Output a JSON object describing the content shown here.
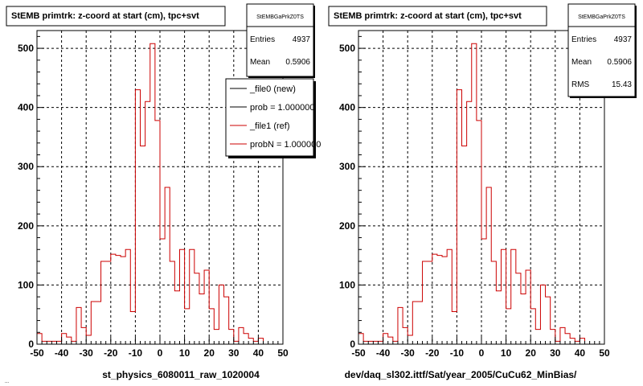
{
  "chart_data": [
    {
      "type": "histogram",
      "title": "StEMB primtrk: z-coord at start (cm), tpc+svt",
      "xlabel": "st_physics_6080011_raw_1020004",
      "xlim": [
        -50,
        50
      ],
      "ylim": [
        0,
        530
      ],
      "xticks": [
        -50,
        -40,
        -30,
        -20,
        -10,
        0,
        10,
        20,
        30,
        40,
        50
      ],
      "yticks": [
        0,
        100,
        200,
        300,
        400,
        500
      ],
      "grid": true,
      "bin_width": 2,
      "x_start": -50,
      "values": [
        18,
        5,
        5,
        5,
        5,
        18,
        12,
        5,
        62,
        28,
        15,
        72,
        72,
        140,
        140,
        152,
        150,
        148,
        160,
        55,
        430,
        335,
        410,
        508,
        378,
        178,
        265,
        140,
        90,
        160,
        60,
        160,
        120,
        85,
        125,
        60,
        25,
        100,
        80,
        25,
        5,
        28,
        18,
        10,
        5,
        10
      ],
      "series": [
        {
          "name": "_file0 (new)",
          "color": "#000000"
        },
        {
          "name": "_file1 (ref)",
          "color": "#cc0000"
        }
      ],
      "stats": {
        "label": "StEMBGaPrkZ0TS",
        "entries_label": "Entries",
        "entries": "4937",
        "mean_label": "Mean",
        "mean": "0.5906"
      },
      "legend": {
        "placement": "top-right",
        "entries": [
          {
            "text": "_file0 (new)",
            "color": "#000000"
          },
          {
            "text": "prob = 1.000000",
            "color": "#000000"
          },
          {
            "text": "_file1 (ref)",
            "color": "#cc0000"
          },
          {
            "text": "probN = 1.000000",
            "color": "#cc0000"
          }
        ]
      }
    },
    {
      "type": "histogram",
      "title": "StEMB primtrk: z-coord at start (cm), tpc+svt",
      "xlabel": "dev/daq_sl302.ittf/Sat/year_2005/CuCu62_MinBias/",
      "xlim": [
        -50,
        50
      ],
      "ylim": [
        0,
        530
      ],
      "xticks": [
        -50,
        -40,
        -30,
        -20,
        -10,
        0,
        10,
        20,
        30,
        40,
        50
      ],
      "yticks": [
        0,
        100,
        200,
        300,
        400,
        500
      ],
      "grid": true,
      "bin_width": 2,
      "x_start": -50,
      "values": [
        18,
        5,
        5,
        5,
        5,
        18,
        12,
        5,
        62,
        28,
        15,
        72,
        72,
        140,
        140,
        152,
        150,
        148,
        160,
        55,
        430,
        335,
        410,
        508,
        378,
        178,
        265,
        140,
        90,
        160,
        60,
        160,
        120,
        85,
        125,
        60,
        25,
        100,
        80,
        25,
        5,
        28,
        18,
        10,
        5,
        10
      ],
      "series": [
        {
          "name": "",
          "color": "#cc0000"
        }
      ],
      "stats": {
        "label": "StEMBGaPrkZ0TS",
        "entries_label": "Entries",
        "entries": "4937",
        "mean_label": "Mean",
        "mean": "0.5906",
        "rms_label": "RMS",
        "rms": "15.43"
      }
    }
  ],
  "footer": {
    "text": "..."
  }
}
